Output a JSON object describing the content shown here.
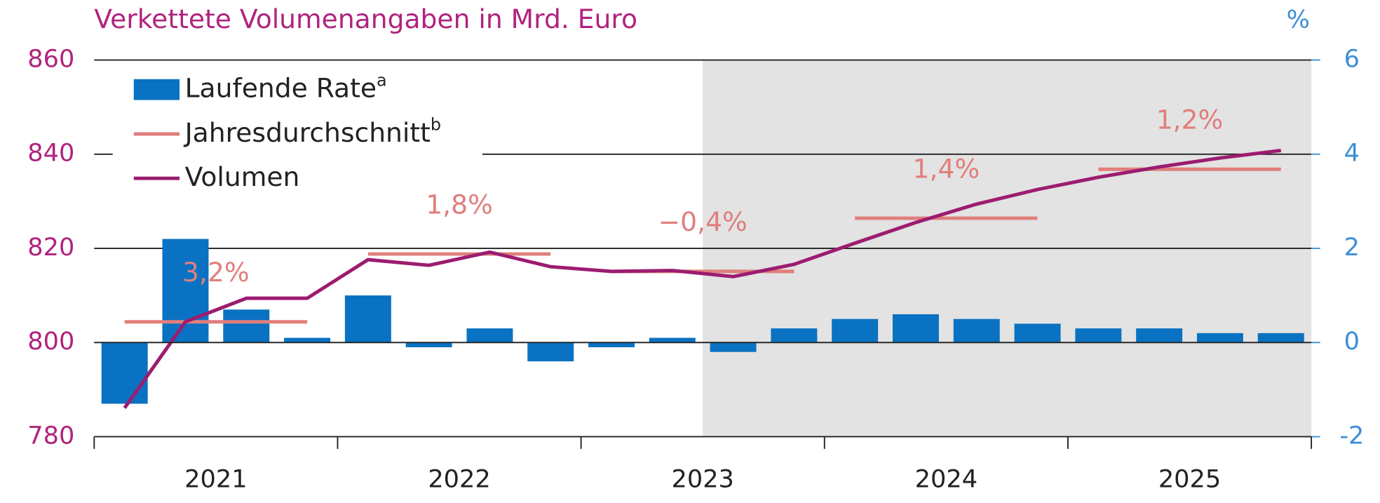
{
  "chart_data": {
    "type": "bar-line",
    "title": "Verkettete Volumenangaben in Mrd. Euro",
    "y2_label": "%",
    "years": [
      "2021",
      "2022",
      "2023",
      "2024",
      "2025"
    ],
    "quarters_per_year": 4,
    "forecast_start_index": 10,
    "ylim": [
      780,
      860
    ],
    "yticks": [
      780,
      800,
      820,
      840,
      860
    ],
    "y2lim": [
      -2,
      6
    ],
    "y2ticks": [
      -2,
      0,
      2,
      4,
      6
    ],
    "grid": true,
    "series": [
      {
        "name": "Laufende Rate",
        "footnote": "a",
        "kind": "bar",
        "axis": "y2",
        "color": "#0a72c2",
        "values": [
          -1.3,
          2.2,
          0.7,
          0.1,
          1.0,
          -0.1,
          0.3,
          -0.4,
          -0.1,
          0.1,
          -0.2,
          0.3,
          0.5,
          0.6,
          0.5,
          0.4,
          0.3,
          0.3,
          0.2,
          0.2
        ]
      },
      {
        "name": "Jahresdurchschnitt",
        "footnote": "b",
        "kind": "annual",
        "color": "#e07f7c",
        "values": [
          804.4,
          818.8,
          815.1,
          826.4,
          836.8
        ],
        "annotations": [
          "3,2%",
          "1,8%",
          "−0,4%",
          "1,4%",
          "1,2%"
        ]
      },
      {
        "name": "Volumen",
        "kind": "line",
        "color": "#9c1c70",
        "values": [
          786.1,
          804.4,
          809.4,
          809.4,
          817.6,
          816.4,
          819.2,
          816.1,
          815.1,
          815.3,
          814.0,
          816.6,
          821.1,
          825.5,
          829.4,
          832.5,
          835.1,
          837.3,
          839.2,
          840.8
        ]
      }
    ]
  }
}
